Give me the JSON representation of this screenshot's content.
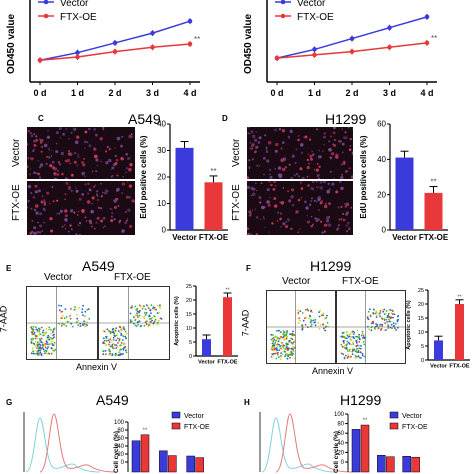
{
  "colors": {
    "vector": "#3b3bdc",
    "ftx": "#e8383a",
    "vector_light": "#7fd3e0",
    "ftx_light": "#e57b7b"
  },
  "chart_data": [
    {
      "id": "A",
      "type": "line",
      "ylabel": "OD450 value",
      "categories": [
        "0 d",
        "1 d",
        "2 d",
        "3 d",
        "4 d"
      ],
      "series": [
        {
          "name": "Vector",
          "values": [
            0.2,
            0.27,
            0.36,
            0.45,
            0.56
          ]
        },
        {
          "name": "FTX-OE",
          "values": [
            0.2,
            0.23,
            0.28,
            0.32,
            0.35
          ]
        }
      ],
      "ylim": [
        0,
        0.7
      ],
      "annotation": "**"
    },
    {
      "id": "B",
      "type": "line",
      "ylabel": "OD450 value",
      "categories": [
        "0 d",
        "1 d",
        "2 d",
        "3 d",
        "4 d"
      ],
      "series": [
        {
          "name": "Vector",
          "values": [
            0.22,
            0.3,
            0.4,
            0.5,
            0.6
          ]
        },
        {
          "name": "FTX-OE",
          "values": [
            0.22,
            0.25,
            0.28,
            0.32,
            0.36
          ]
        }
      ],
      "ylim": [
        0,
        0.7
      ],
      "annotation": "**"
    },
    {
      "id": "C",
      "type": "bar",
      "ylabel": "EdU positive cells (%)",
      "categories": [
        "Vector",
        "FTX-OE"
      ],
      "values": [
        31,
        18
      ],
      "ylim": [
        0,
        40
      ],
      "ticks": [
        0,
        10,
        20,
        30,
        40
      ],
      "annotation": "**"
    },
    {
      "id": "D",
      "type": "bar",
      "ylabel": "EdU positive cells (%)",
      "categories": [
        "Vector",
        "FTX-OE"
      ],
      "values": [
        41,
        21
      ],
      "ylim": [
        0,
        60
      ],
      "ticks": [
        0,
        20,
        40,
        60
      ],
      "annotation": "**"
    },
    {
      "id": "E",
      "type": "bar",
      "ylabel": "Apoptotic cells (%)",
      "categories": [
        "Vector",
        "FTX-OE"
      ],
      "values": [
        6,
        21
      ],
      "ylim": [
        0,
        25
      ],
      "ticks": [
        0,
        5,
        10,
        15,
        20,
        25
      ],
      "annotation": "**"
    },
    {
      "id": "F",
      "type": "bar",
      "ylabel": "Apoptotic cells (%)",
      "categories": [
        "Vector",
        "FTX-OE"
      ],
      "values": [
        7,
        20
      ],
      "ylim": [
        0,
        25
      ],
      "ticks": [
        0,
        5,
        10,
        15,
        20,
        25
      ],
      "annotation": "**"
    },
    {
      "id": "G",
      "type": "bar",
      "ylabel": "Cell cycle (%)",
      "groups": 3,
      "series": [
        {
          "name": "Vector",
          "values": [
            53,
            28,
            15
          ]
        },
        {
          "name": "FTX-OE",
          "values": [
            68,
            16,
            11
          ]
        }
      ],
      "ylim": [
        0,
        100
      ],
      "ticks": [
        0,
        20,
        40,
        60,
        80,
        100
      ],
      "annotation": "**"
    },
    {
      "id": "H",
      "type": "bar",
      "ylabel": "Cell cycle (%)",
      "groups": 3,
      "series": [
        {
          "name": "Vector",
          "values": [
            68,
            14,
            12
          ]
        },
        {
          "name": "FTX-OE",
          "values": [
            77,
            11,
            10
          ]
        }
      ],
      "ylim": [
        0,
        100
      ],
      "ticks": [
        0,
        20,
        40,
        60,
        80,
        100
      ],
      "annotation": "**"
    }
  ],
  "text": {
    "A549": "A549",
    "H1299": "H1299",
    "C": "C",
    "D": "D",
    "E": "E",
    "F": "F",
    "G": "G",
    "H": "H",
    "vector": "Vector",
    "ftx": "FTX-OE",
    "vector_cut": "Vector",
    "annexin": "Annexin V",
    "aad": "7-AAD"
  }
}
